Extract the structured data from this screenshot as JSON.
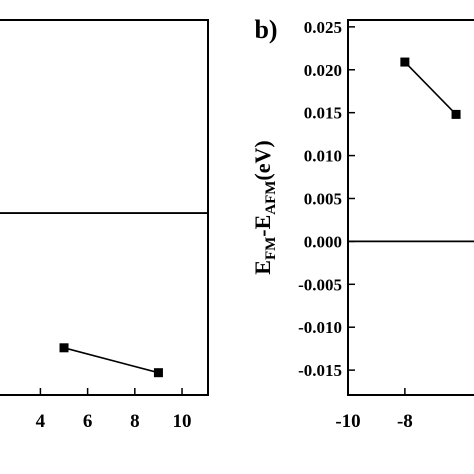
{
  "chart_data": [
    {
      "type": "line",
      "x": [
        5,
        9
      ],
      "series": [
        {
          "color": "#000000",
          "values": [
            -0.0157,
            -0.0186
          ]
        }
      ],
      "xlim": [
        0,
        11.1
      ],
      "ylim": [
        -0.0212,
        0.0225
      ],
      "xticks": [
        4,
        6,
        8,
        10
      ],
      "reference_line": 0
    },
    {
      "type": "line",
      "title": "b)",
      "ylabel_parts": [
        {
          "text": "E",
          "sub": false
        },
        {
          "text": "FM",
          "sub": true
        },
        {
          "text": "-E",
          "sub": false
        },
        {
          "text": "AFM",
          "sub": true
        },
        {
          "text": "(eV)",
          "sub": false
        }
      ],
      "x": [
        -8,
        -6.2
      ],
      "series": [
        {
          "color": "#000000",
          "values": [
            0.0209,
            0.0148
          ]
        }
      ],
      "xlim": [
        -10,
        -3.6
      ],
      "ylim": [
        -0.0179,
        0.0258
      ],
      "xticks": [
        -10,
        -8
      ],
      "yticks": [
        0.025,
        {
          "value": 0.02,
          "label": "0.020"
        },
        0.015,
        {
          "value": 0.01,
          "label": "0.010"
        },
        0.005,
        {
          "value": 0,
          "label": "0.000"
        },
        -0.005,
        {
          "value": -0.01,
          "label": "-0.010"
        },
        -0.015
      ],
      "reference_line": 0
    }
  ]
}
